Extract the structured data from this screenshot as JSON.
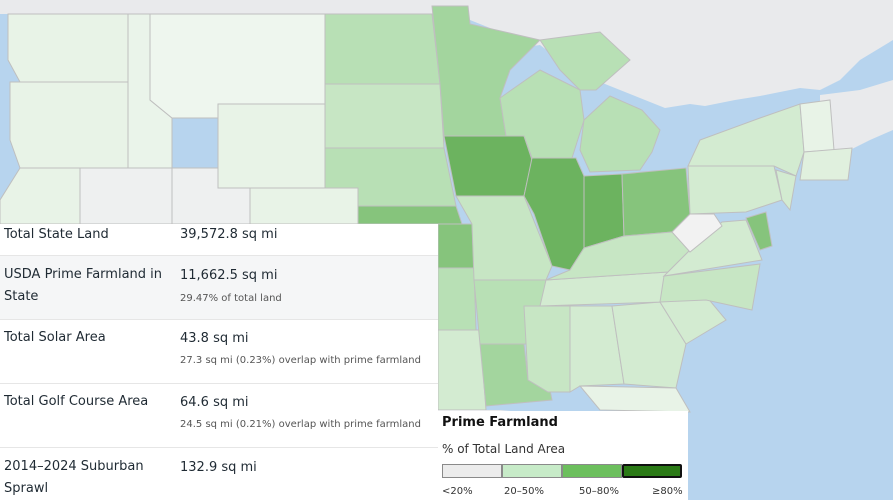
{
  "stats": [
    {
      "label": "Total State Land",
      "value": "39,572.8 sq mi",
      "note": ""
    },
    {
      "label": "USDA Prime Farmland in State",
      "value": "11,662.5 sq mi",
      "note": "29.47% of total land"
    },
    {
      "label": "Total Solar Area",
      "value": "43.8 sq mi",
      "note": "27.3 sq mi (0.23%) overlap with prime farmland"
    },
    {
      "label": "Total Golf Course Area",
      "value": "64.6 sq mi",
      "note": "24.5 sq mi (0.21%) overlap with prime farmland"
    },
    {
      "label": "2014–2024 Suburban Sprawl",
      "value": "132.9 sq mi",
      "note": ""
    }
  ],
  "legend": {
    "title": "Prime Farmland",
    "subtitle": "% of Total Land Area",
    "bins": [
      {
        "label": "<20%",
        "color": "#ececec"
      },
      {
        "label": "20–50%",
        "color": "#c7ebc8"
      },
      {
        "label": "50–80%",
        "color": "#6cbf5d"
      },
      {
        "label": "≥80%",
        "color": "#2b7a16"
      }
    ]
  },
  "colors": {
    "water": "#b7d4ee",
    "nonUS": "#e9eaec",
    "veryLight": "#e8f3e7",
    "light": "#d3ebd1",
    "mid": "#b8e0b5",
    "midDark": "#a3d59e",
    "dark": "#86c47c",
    "darker": "#6cb35f"
  }
}
